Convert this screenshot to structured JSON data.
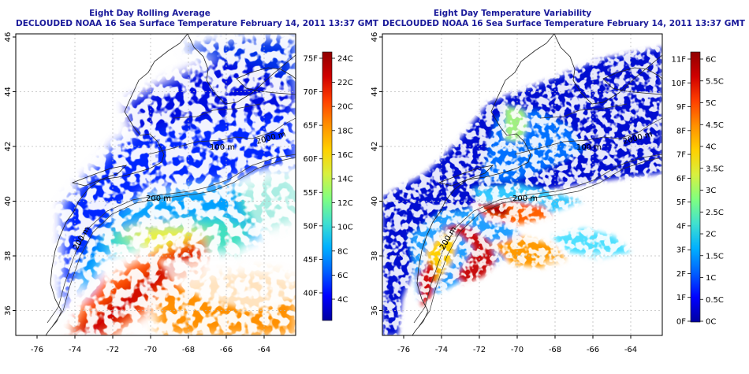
{
  "colors": {
    "land": "#c4c4c4",
    "cloud": "#ffffff",
    "title": "#1a1a9a",
    "gridline": "#bbbbbb"
  },
  "panels": [
    {
      "id": "average",
      "title_line1": "Eight Day Rolling Average",
      "title_line2": "DECLOUDED NOAA 16 Sea Surface Temperature February 14, 2011 13:37 GMT",
      "lon_ticks": [
        "-76",
        "-74",
        "-72",
        "-70",
        "-68",
        "-66",
        "-64"
      ],
      "lat_ticks": [
        "46",
        "44",
        "42",
        "40",
        "38",
        "36"
      ],
      "contour_labels": [
        "100 m",
        "200 m",
        "200 m",
        "2000 m"
      ],
      "colorbar": {
        "colors": [
          "#0000a0",
          "#0000ff",
          "#0060ff",
          "#00b0ff",
          "#40e0d0",
          "#80ff80",
          "#d8f040",
          "#ffd000",
          "#ff9000",
          "#ff4000",
          "#d00000",
          "#900000"
        ],
        "left_ticks": [
          "75F",
          "70F",
          "65F",
          "60F",
          "55F",
          "50F",
          "45F",
          "40F"
        ],
        "right_ticks": [
          "24C",
          "22C",
          "20C",
          "18C",
          "16C",
          "14C",
          "12C",
          "10C",
          "8C",
          "6C",
          "4C"
        ]
      }
    },
    {
      "id": "variability",
      "title_line1": "Eight Day Temperature Variability",
      "title_line2": "DECLOUDED NOAA 16 Sea Surface Temperature February 14, 2011 13:37 GMT",
      "lon_ticks": [
        "-76",
        "-74",
        "-72",
        "-70",
        "-68",
        "-66",
        "-64"
      ],
      "lat_ticks": [
        "46",
        "44",
        "42",
        "40",
        "38",
        "36"
      ],
      "contour_labels": [
        "100 m",
        "200 m",
        "200 m",
        "2000 m"
      ],
      "colorbar": {
        "colors": [
          "#0000a0",
          "#0000ff",
          "#0060ff",
          "#00b0ff",
          "#40e0d0",
          "#80ff80",
          "#d8f040",
          "#ffd000",
          "#ff9000",
          "#ff4000",
          "#d00000",
          "#900000"
        ],
        "left_ticks": [
          "11F",
          "10F",
          "9F",
          "8F",
          "7F",
          "6F",
          "5F",
          "4F",
          "3F",
          "2F",
          "1F",
          "0F"
        ],
        "right_ticks": [
          "6C",
          "5.5C",
          "5C",
          "4.5C",
          "4C",
          "3.5C",
          "3C",
          "2.5C",
          "2C",
          "1.5C",
          "1C",
          "0.5C",
          "0C"
        ]
      }
    }
  ]
}
